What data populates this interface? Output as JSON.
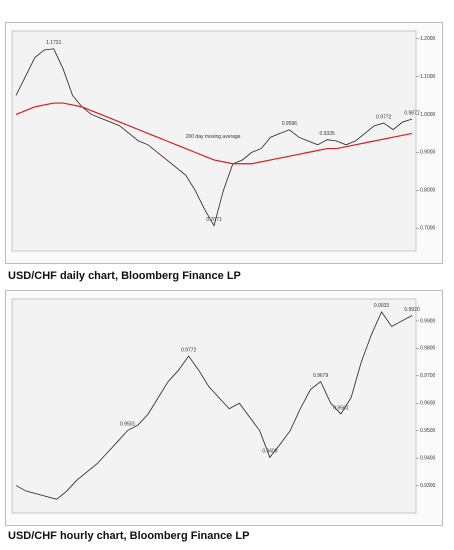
{
  "chart_data": [
    {
      "type": "line",
      "caption": "USD/CHF daily chart, Bloomberg Finance LP",
      "series": [
        {
          "name": "USD/CHF",
          "color": "#222222",
          "values": [
            1.05,
            1.1,
            1.15,
            1.17,
            1.1731,
            1.12,
            1.05,
            1.02,
            1.0,
            0.99,
            0.98,
            0.97,
            0.95,
            0.93,
            0.92,
            0.9,
            0.88,
            0.86,
            0.84,
            0.8,
            0.75,
            0.7071,
            0.8,
            0.87,
            0.88,
            0.9,
            0.91,
            0.94,
            0.95,
            0.9596,
            0.94,
            0.93,
            0.92,
            0.9335,
            0.93,
            0.92,
            0.93,
            0.95,
            0.97,
            0.9772,
            0.96,
            0.98,
            0.9877
          ]
        },
        {
          "name": "200 day moving average",
          "color": "#d42020",
          "values": [
            1.0,
            1.01,
            1.02,
            1.025,
            1.03,
            1.03,
            1.025,
            1.02,
            1.01,
            1.0,
            0.99,
            0.98,
            0.97,
            0.96,
            0.95,
            0.94,
            0.93,
            0.92,
            0.91,
            0.9,
            0.89,
            0.88,
            0.875,
            0.87,
            0.87,
            0.87,
            0.875,
            0.88,
            0.885,
            0.89,
            0.895,
            0.9,
            0.905,
            0.91,
            0.91,
            0.915,
            0.92,
            0.925,
            0.93,
            0.935,
            0.94,
            0.945,
            0.95
          ]
        }
      ],
      "annotations": [
        {
          "text": "1.1731",
          "at": 4
        },
        {
          "text": "0.7071",
          "at": 21
        },
        {
          "text": "0.9596",
          "at": 29
        },
        {
          "text": "0.9335",
          "at": 33
        },
        {
          "text": "0.9772",
          "at": 39
        },
        {
          "text": "0.9877",
          "at": 42
        }
      ],
      "ylim": [
        0.64,
        1.22
      ],
      "yticks": [
        {
          "value": 0.7,
          "label": "0.7000"
        },
        {
          "value": 0.8,
          "label": "0.8000"
        },
        {
          "value": 0.9,
          "label": "0.9000"
        },
        {
          "value": 1.0,
          "label": "1.0000"
        },
        {
          "value": 1.1,
          "label": "1.1000"
        },
        {
          "value": 1.2,
          "label": "1.2000"
        }
      ]
    },
    {
      "type": "line",
      "caption": "USD/CHF hourly chart, Bloomberg Finance LP",
      "series": [
        {
          "name": "USD/CHF",
          "color": "#222222",
          "values": [
            0.93,
            0.928,
            0.927,
            0.926,
            0.925,
            0.928,
            0.932,
            0.935,
            0.938,
            0.942,
            0.946,
            0.9501,
            0.952,
            0.956,
            0.962,
            0.968,
            0.972,
            0.9772,
            0.972,
            0.966,
            0.962,
            0.958,
            0.96,
            0.955,
            0.95,
            0.9403,
            0.945,
            0.95,
            0.958,
            0.965,
            0.9679,
            0.96,
            0.9561,
            0.962,
            0.975,
            0.985,
            0.9933,
            0.988,
            0.99,
            0.992
          ]
        }
      ],
      "annotations": [
        {
          "text": "0.9501",
          "at": 11
        },
        {
          "text": "0.9772",
          "at": 17
        },
        {
          "text": "0.9403",
          "at": 25
        },
        {
          "text": "0.9679",
          "at": 30
        },
        {
          "text": "0.9561",
          "at": 32
        },
        {
          "text": "0.9933",
          "at": 36
        },
        {
          "text": "0.9920",
          "at": 39
        }
      ],
      "ylim": [
        0.92,
        0.998
      ],
      "yticks": [
        {
          "value": 0.93,
          "label": "0.9300"
        },
        {
          "value": 0.94,
          "label": "0.9400"
        },
        {
          "value": 0.95,
          "label": "0.9500"
        },
        {
          "value": 0.96,
          "label": "0.9600"
        },
        {
          "value": 0.97,
          "label": "0.9700"
        },
        {
          "value": 0.98,
          "label": "0.9800"
        },
        {
          "value": 0.99,
          "label": "0.9900"
        }
      ]
    }
  ]
}
